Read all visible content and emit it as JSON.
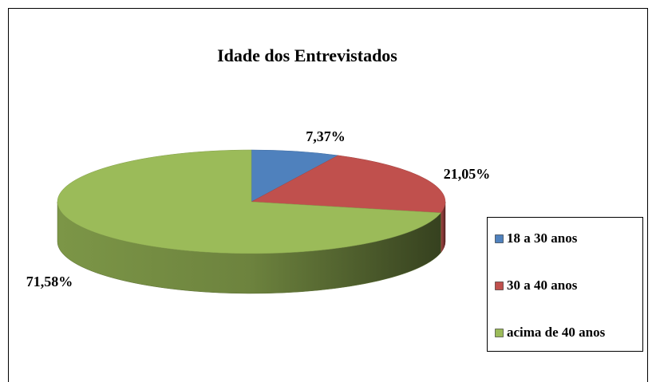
{
  "chart_data": {
    "type": "pie",
    "title": "Idade dos Entrevistados",
    "categories": [
      "18 a 30 anos",
      "30 a 40 anos",
      "acima de 40 anos"
    ],
    "values": [
      7.37,
      21.05,
      71.58
    ],
    "value_labels": [
      "7,37%",
      "21,05%",
      "71,58%"
    ],
    "colors": [
      "#4f81bd",
      "#c0504d",
      "#9bbb59"
    ],
    "legend": "right"
  }
}
